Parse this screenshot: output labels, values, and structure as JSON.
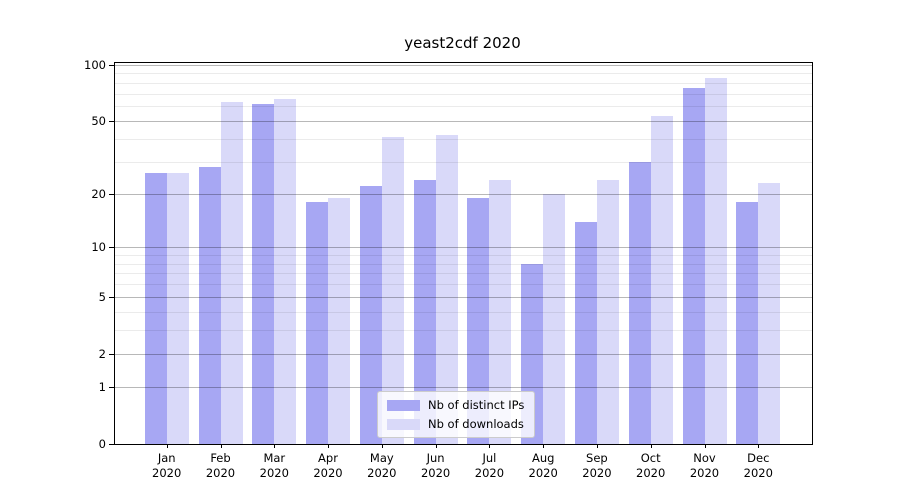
{
  "title": "yeast2cdf 2020",
  "chart_data": {
    "type": "bar",
    "title": "yeast2cdf 2020",
    "categories": [
      "Jan",
      "Feb",
      "Mar",
      "Apr",
      "May",
      "Jun",
      "Jul",
      "Aug",
      "Sep",
      "Oct",
      "Nov",
      "Dec"
    ],
    "category_year": "2020",
    "series": [
      {
        "name": "Nb of distinct IPs",
        "color": "#a7a7f3",
        "values": [
          26,
          28,
          62,
          18,
          22,
          24,
          19,
          8,
          14,
          30,
          75,
          18
        ]
      },
      {
        "name": "Nb of downloads",
        "color": "#d9d9f9",
        "values": [
          26,
          63,
          66,
          19,
          41,
          42,
          24,
          20,
          24,
          53,
          85,
          23
        ]
      }
    ],
    "xlabel": "",
    "ylabel": "",
    "y_axis": {
      "scale": "log10(1+x)",
      "ticks": [
        0,
        1,
        2,
        5,
        10,
        20,
        50,
        100
      ],
      "minor_gridlines": [
        3,
        4,
        6,
        7,
        8,
        9,
        30,
        40,
        60,
        70,
        80,
        90
      ],
      "ylim": [
        0,
        105
      ]
    },
    "grid": "on",
    "legend_position": "inside-bottom-center"
  }
}
